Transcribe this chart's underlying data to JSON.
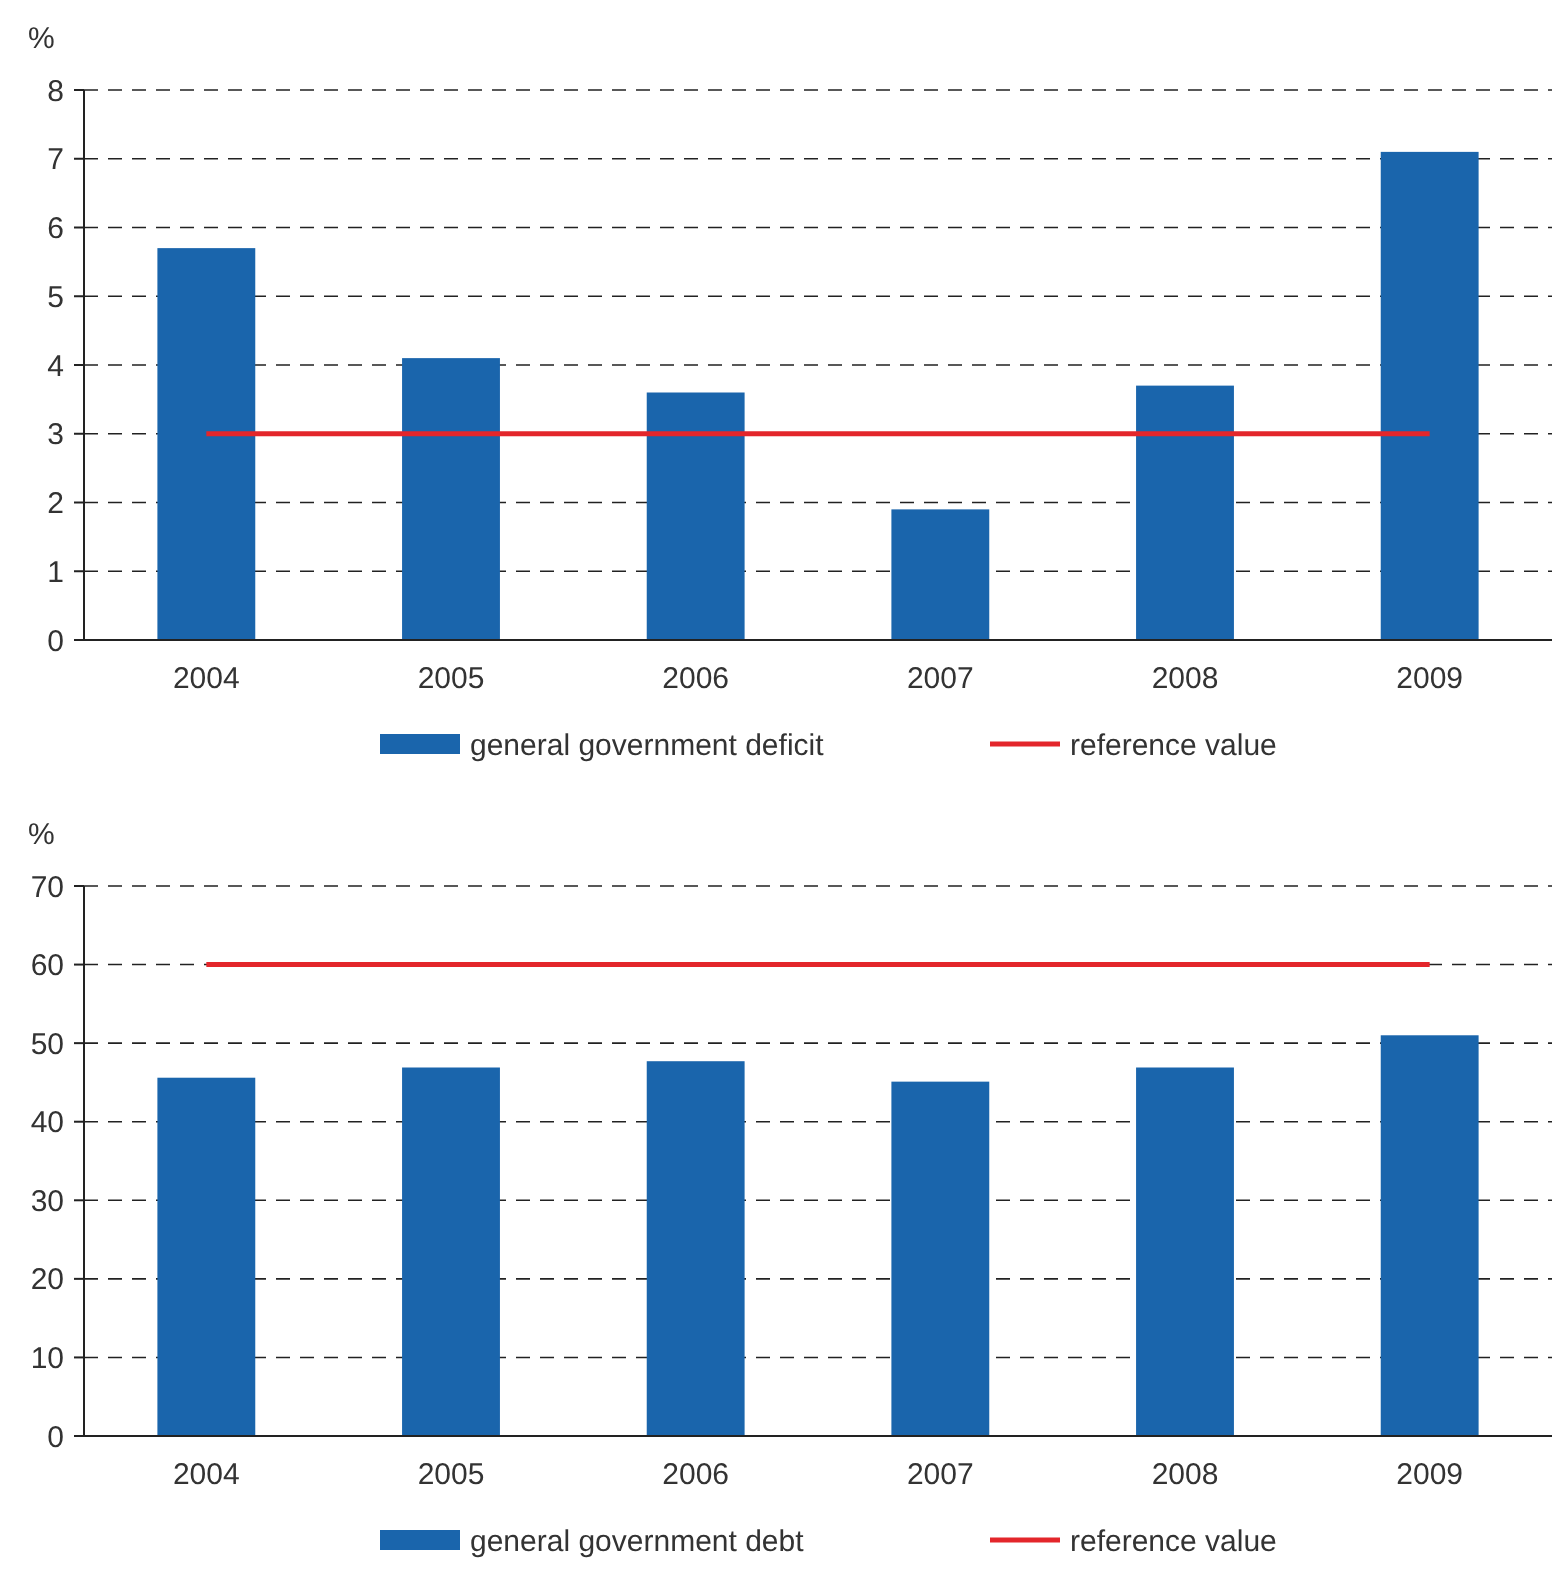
{
  "chart_data": [
    {
      "type": "bar",
      "ylabel": "%",
      "categories": [
        "2004",
        "2005",
        "2006",
        "2007",
        "2008",
        "2009"
      ],
      "ylim": [
        0,
        8
      ],
      "yticks": [
        0,
        1,
        2,
        3,
        4,
        5,
        6,
        7,
        8
      ],
      "grid": "y",
      "legend": "bottom",
      "series": [
        {
          "name": "general government deficit",
          "color": "#1a65ac",
          "values": [
            5.7,
            4.1,
            3.6,
            1.9,
            3.7,
            7.1
          ]
        },
        {
          "name": "reference value",
          "type": "line",
          "color": "#e3262b",
          "values": [
            3,
            3,
            3,
            3,
            3,
            3
          ]
        }
      ]
    },
    {
      "type": "bar",
      "ylabel": "%",
      "categories": [
        "2004",
        "2005",
        "2006",
        "2007",
        "2008",
        "2009"
      ],
      "ylim": [
        0,
        70
      ],
      "yticks": [
        0,
        10,
        20,
        30,
        40,
        50,
        60,
        70
      ],
      "grid": "y",
      "legend": "bottom",
      "series": [
        {
          "name": "general government debt",
          "color": "#1a65ac",
          "values": [
            45.6,
            46.9,
            47.7,
            45.1,
            46.9,
            51.0
          ]
        },
        {
          "name": "reference value",
          "type": "line",
          "color": "#e3262b",
          "values": [
            60,
            60,
            60,
            60,
            60,
            60
          ]
        }
      ]
    }
  ]
}
